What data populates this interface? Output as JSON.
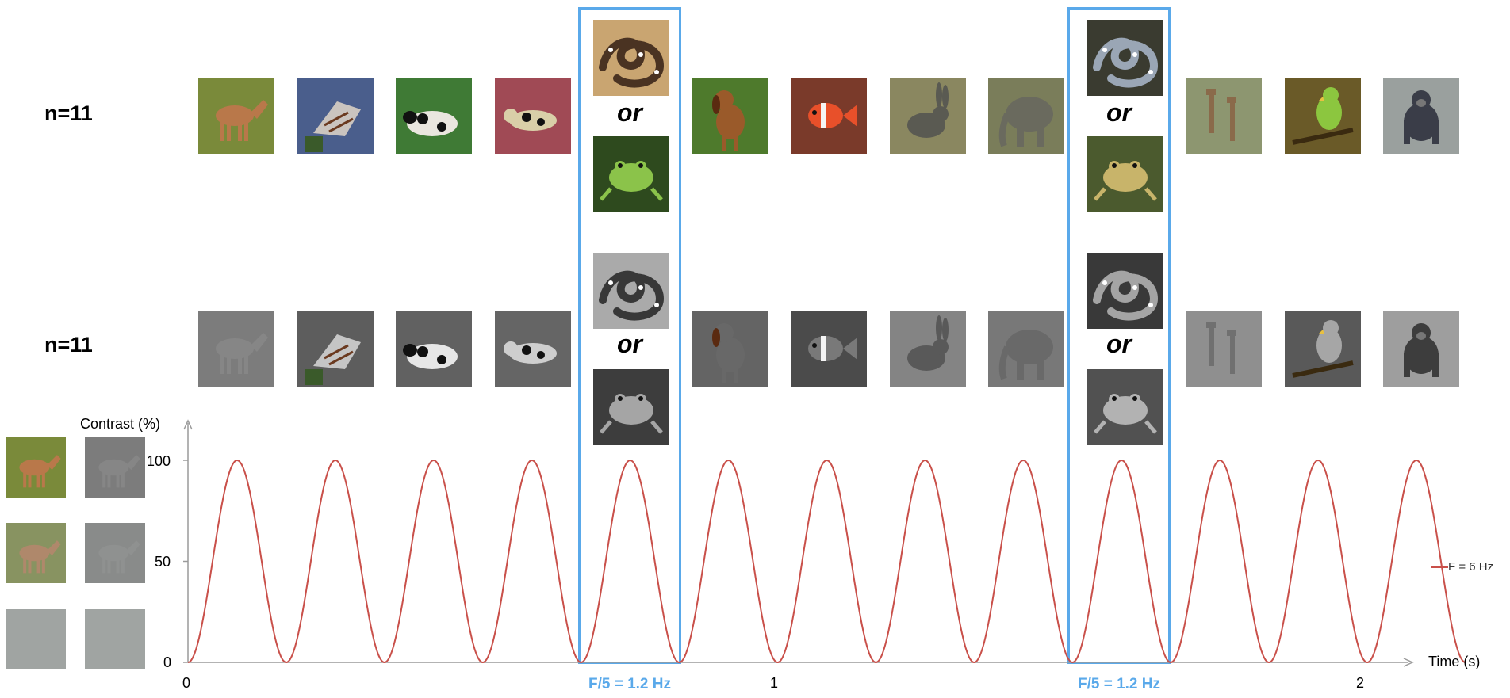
{
  "rows": [
    {
      "label": "n=11",
      "mode": "color"
    },
    {
      "label": "n=11",
      "mode": "gray"
    }
  ],
  "sequence": [
    {
      "icon": "horse-icon",
      "bg": "#7a8a3a",
      "fg": "#b9784a"
    },
    {
      "icon": "butterfly-icon",
      "bg": "#4a5e8c",
      "fg": "#d8cfc4"
    },
    {
      "icon": "cow-icon",
      "bg": "#3f7a35",
      "fg": "#eae6df"
    },
    {
      "icon": "cat-icon",
      "bg": "#a04a55",
      "fg": "#d9cfa8"
    },
    {
      "icon": "target-pair",
      "top": {
        "icon": "snake-icon",
        "bg": "#c9a571",
        "fg": "#4a3322"
      },
      "bottom": {
        "icon": "frog-icon",
        "bg": "#2e4a1e",
        "fg": "#8bc34a"
      }
    },
    {
      "icon": "dog-icon",
      "bg": "#4e7a2c",
      "fg": "#9a5a2a"
    },
    {
      "icon": "fish-icon",
      "bg": "#7a3a2a",
      "fg": "#e8502a"
    },
    {
      "icon": "rabbit-icon",
      "bg": "#8a8760",
      "fg": "#5a5a52"
    },
    {
      "icon": "elephant-icon",
      "bg": "#7a7d5a",
      "fg": "#6a6a5e"
    },
    {
      "icon": "target-pair",
      "top": {
        "icon": "snake-icon",
        "bg": "#3a3b30",
        "fg": "#9aa6b5"
      },
      "bottom": {
        "icon": "frog-icon",
        "bg": "#4b5a2e",
        "fg": "#c8b46a"
      }
    },
    {
      "icon": "giraffe-icon",
      "bg": "#8d9670",
      "fg": "#8a6a4a"
    },
    {
      "icon": "parrot-icon",
      "bg": "#6a5a28",
      "fg": "#8cc63f"
    },
    {
      "icon": "chimp-icon",
      "bg": "#9aa09e",
      "fg": "#3a3d48"
    }
  ],
  "or_label": "or",
  "highlight_label": "F/5 = 1.2 Hz",
  "contrast_swatches": [
    {
      "level": 100,
      "icon": "horse-icon"
    },
    {
      "level": 50,
      "icon": "horse-icon"
    },
    {
      "level": 0,
      "icon": "blank"
    }
  ],
  "chart_data": {
    "type": "line",
    "title": "",
    "ylabel": "Contrast (%)",
    "xlabel": "Time (s)",
    "ylim": [
      0,
      100
    ],
    "xlim": [
      0,
      2.1667
    ],
    "yticks": [
      0,
      50,
      100
    ],
    "xticks": [
      0,
      1,
      2
    ],
    "frequency_hz": 6,
    "series": [
      {
        "name": "F = 6 Hz",
        "color": "#c9504a",
        "formula": "50 - 50*cos(2*pi*6*t)"
      }
    ],
    "highlight_windows": [
      [
        0.6667,
        0.8333
      ],
      [
        1.5,
        1.6667
      ]
    ]
  },
  "colors": {
    "highlight": "#5aa9ea",
    "wave": "#c9504a",
    "axis": "#9a9a9a",
    "gray_swatch": "#a0a4a2"
  }
}
